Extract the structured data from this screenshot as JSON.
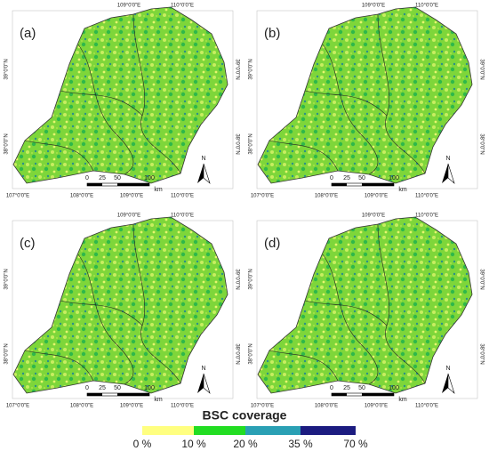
{
  "panels": [
    {
      "label": "(a)",
      "top_lon": [
        "109°0'0\"E",
        "110°0'0\"E"
      ],
      "bottom_lon": [
        "107°0'0\"E",
        "108°0'0\"E",
        "109°0'0\"E",
        "110°0'0\"E"
      ],
      "left_lat": [
        "39°0'0\"N",
        "38°0'0\"N"
      ],
      "right_lat": [
        "39°0'0\"N",
        "38°0'0\"N"
      ],
      "scale": [
        "0",
        "25",
        "50",
        "100"
      ],
      "scale_unit": "km",
      "north": "N"
    },
    {
      "label": "(b)",
      "top_lon": [
        "109°0'0\"E",
        "110°0'0\"E"
      ],
      "bottom_lon": [
        "107°0'0\"E",
        "108°0'0\"E",
        "109°0'0\"E",
        "110°0'0\"E"
      ],
      "left_lat": [
        "39°0'0\"N",
        "38°0'0\"N"
      ],
      "right_lat": [
        "39°0'0\"N",
        "38°0'0\"N"
      ],
      "scale": [
        "0",
        "25",
        "50",
        "100"
      ],
      "scale_unit": "km",
      "north": "N"
    },
    {
      "label": "(c)",
      "top_lon": [
        "109°0'0\"E",
        "110°0'0\"E"
      ],
      "bottom_lon": [
        "107°0'0\"E",
        "108°0'0\"E",
        "109°0'0\"E",
        "110°0'0\"E"
      ],
      "left_lat": [
        "39°0'0\"N",
        "38°0'0\"N"
      ],
      "right_lat": [
        "39°0'0\"N",
        "38°0'0\"N"
      ],
      "scale": [
        "0",
        "25",
        "50",
        "100"
      ],
      "scale_unit": "km",
      "north": "N"
    },
    {
      "label": "(d)",
      "top_lon": [
        "109°0'0\"E",
        "110°0'0\"E"
      ],
      "bottom_lon": [
        "107°0'0\"E",
        "108°0'0\"E",
        "109°0'0\"E",
        "110°0'0\"E"
      ],
      "left_lat": [
        "39°0'0\"N",
        "38°0'0\"N"
      ],
      "right_lat": [
        "39°0'0\"N",
        "38°0'0\"N"
      ],
      "scale": [
        "0",
        "25",
        "50",
        "100"
      ],
      "scale_unit": "km",
      "north": "N"
    }
  ],
  "legend": {
    "title": "BSC coverage",
    "labels": [
      "0 %",
      "10 %",
      "20 %",
      "35 %",
      "70 %"
    ],
    "colors": [
      "#ffff80",
      "#22dd22",
      "#2aa0b4",
      "#1c1c80"
    ]
  }
}
